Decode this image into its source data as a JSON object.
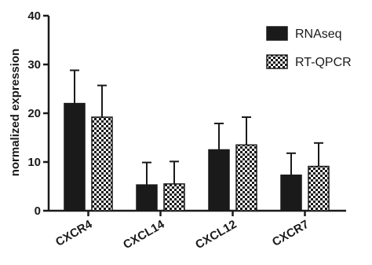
{
  "chart_data": {
    "type": "bar",
    "title": "",
    "xlabel": "",
    "ylabel": "normalized expression",
    "ylim": [
      0,
      40
    ],
    "yticks": [
      0,
      10,
      20,
      30,
      40
    ],
    "categories": [
      "CXCR4",
      "CXCL14",
      "CXCL12",
      "CXCR7"
    ],
    "series": [
      {
        "name": "RNAseq",
        "values": [
          22.0,
          5.3,
          12.5,
          7.3
        ],
        "errors": [
          6.8,
          4.6,
          5.4,
          4.5
        ],
        "fill": "solid"
      },
      {
        "name": "RT-QPCR",
        "values": [
          19.2,
          5.5,
          13.5,
          9.1
        ],
        "errors": [
          6.5,
          4.6,
          5.7,
          4.8
        ],
        "fill": "checker"
      }
    ],
    "legend_position": "top-right",
    "grid": false,
    "colors": {
      "bar": "#1a1a1a",
      "axis": "#1a1a1a",
      "checker_light": "#ffffff"
    }
  }
}
